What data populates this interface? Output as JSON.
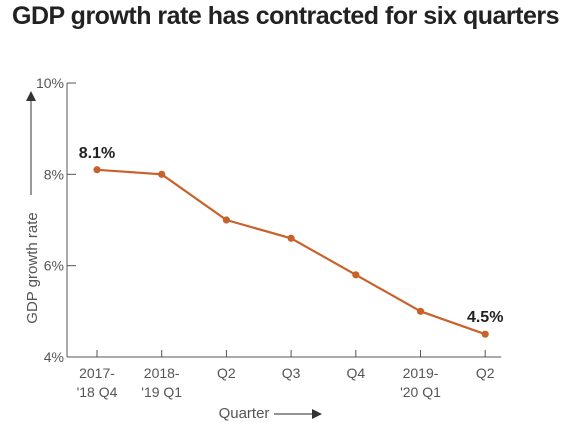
{
  "title": "GDP growth rate has contracted for six quarters",
  "colors": {
    "line": "#c8622a",
    "axis": "#555555",
    "text": "#555555"
  },
  "chart_data": {
    "type": "line",
    "title": "GDP growth rate has contracted for six quarters",
    "xlabel": "Quarter",
    "ylabel": "GDP growth rate",
    "categories": [
      [
        "2017-",
        "'18 Q4"
      ],
      [
        "2018-",
        "'19 Q1"
      ],
      [
        "Q2"
      ],
      [
        "Q3"
      ],
      [
        "Q4"
      ],
      [
        "2019-",
        "'20 Q1"
      ],
      [
        "Q2"
      ]
    ],
    "values": [
      8.1,
      8.0,
      7.0,
      6.6,
      5.8,
      5.0,
      4.5
    ],
    "ylim": [
      4,
      10
    ],
    "yticks": [
      4,
      6,
      8,
      10
    ],
    "ytick_labels": [
      "4%",
      "6%",
      "8%",
      "10%"
    ],
    "data_labels": [
      {
        "index": 0,
        "text": "8.1%"
      },
      {
        "index": 6,
        "text": "4.5%"
      }
    ],
    "grid": false,
    "legend": "none"
  }
}
